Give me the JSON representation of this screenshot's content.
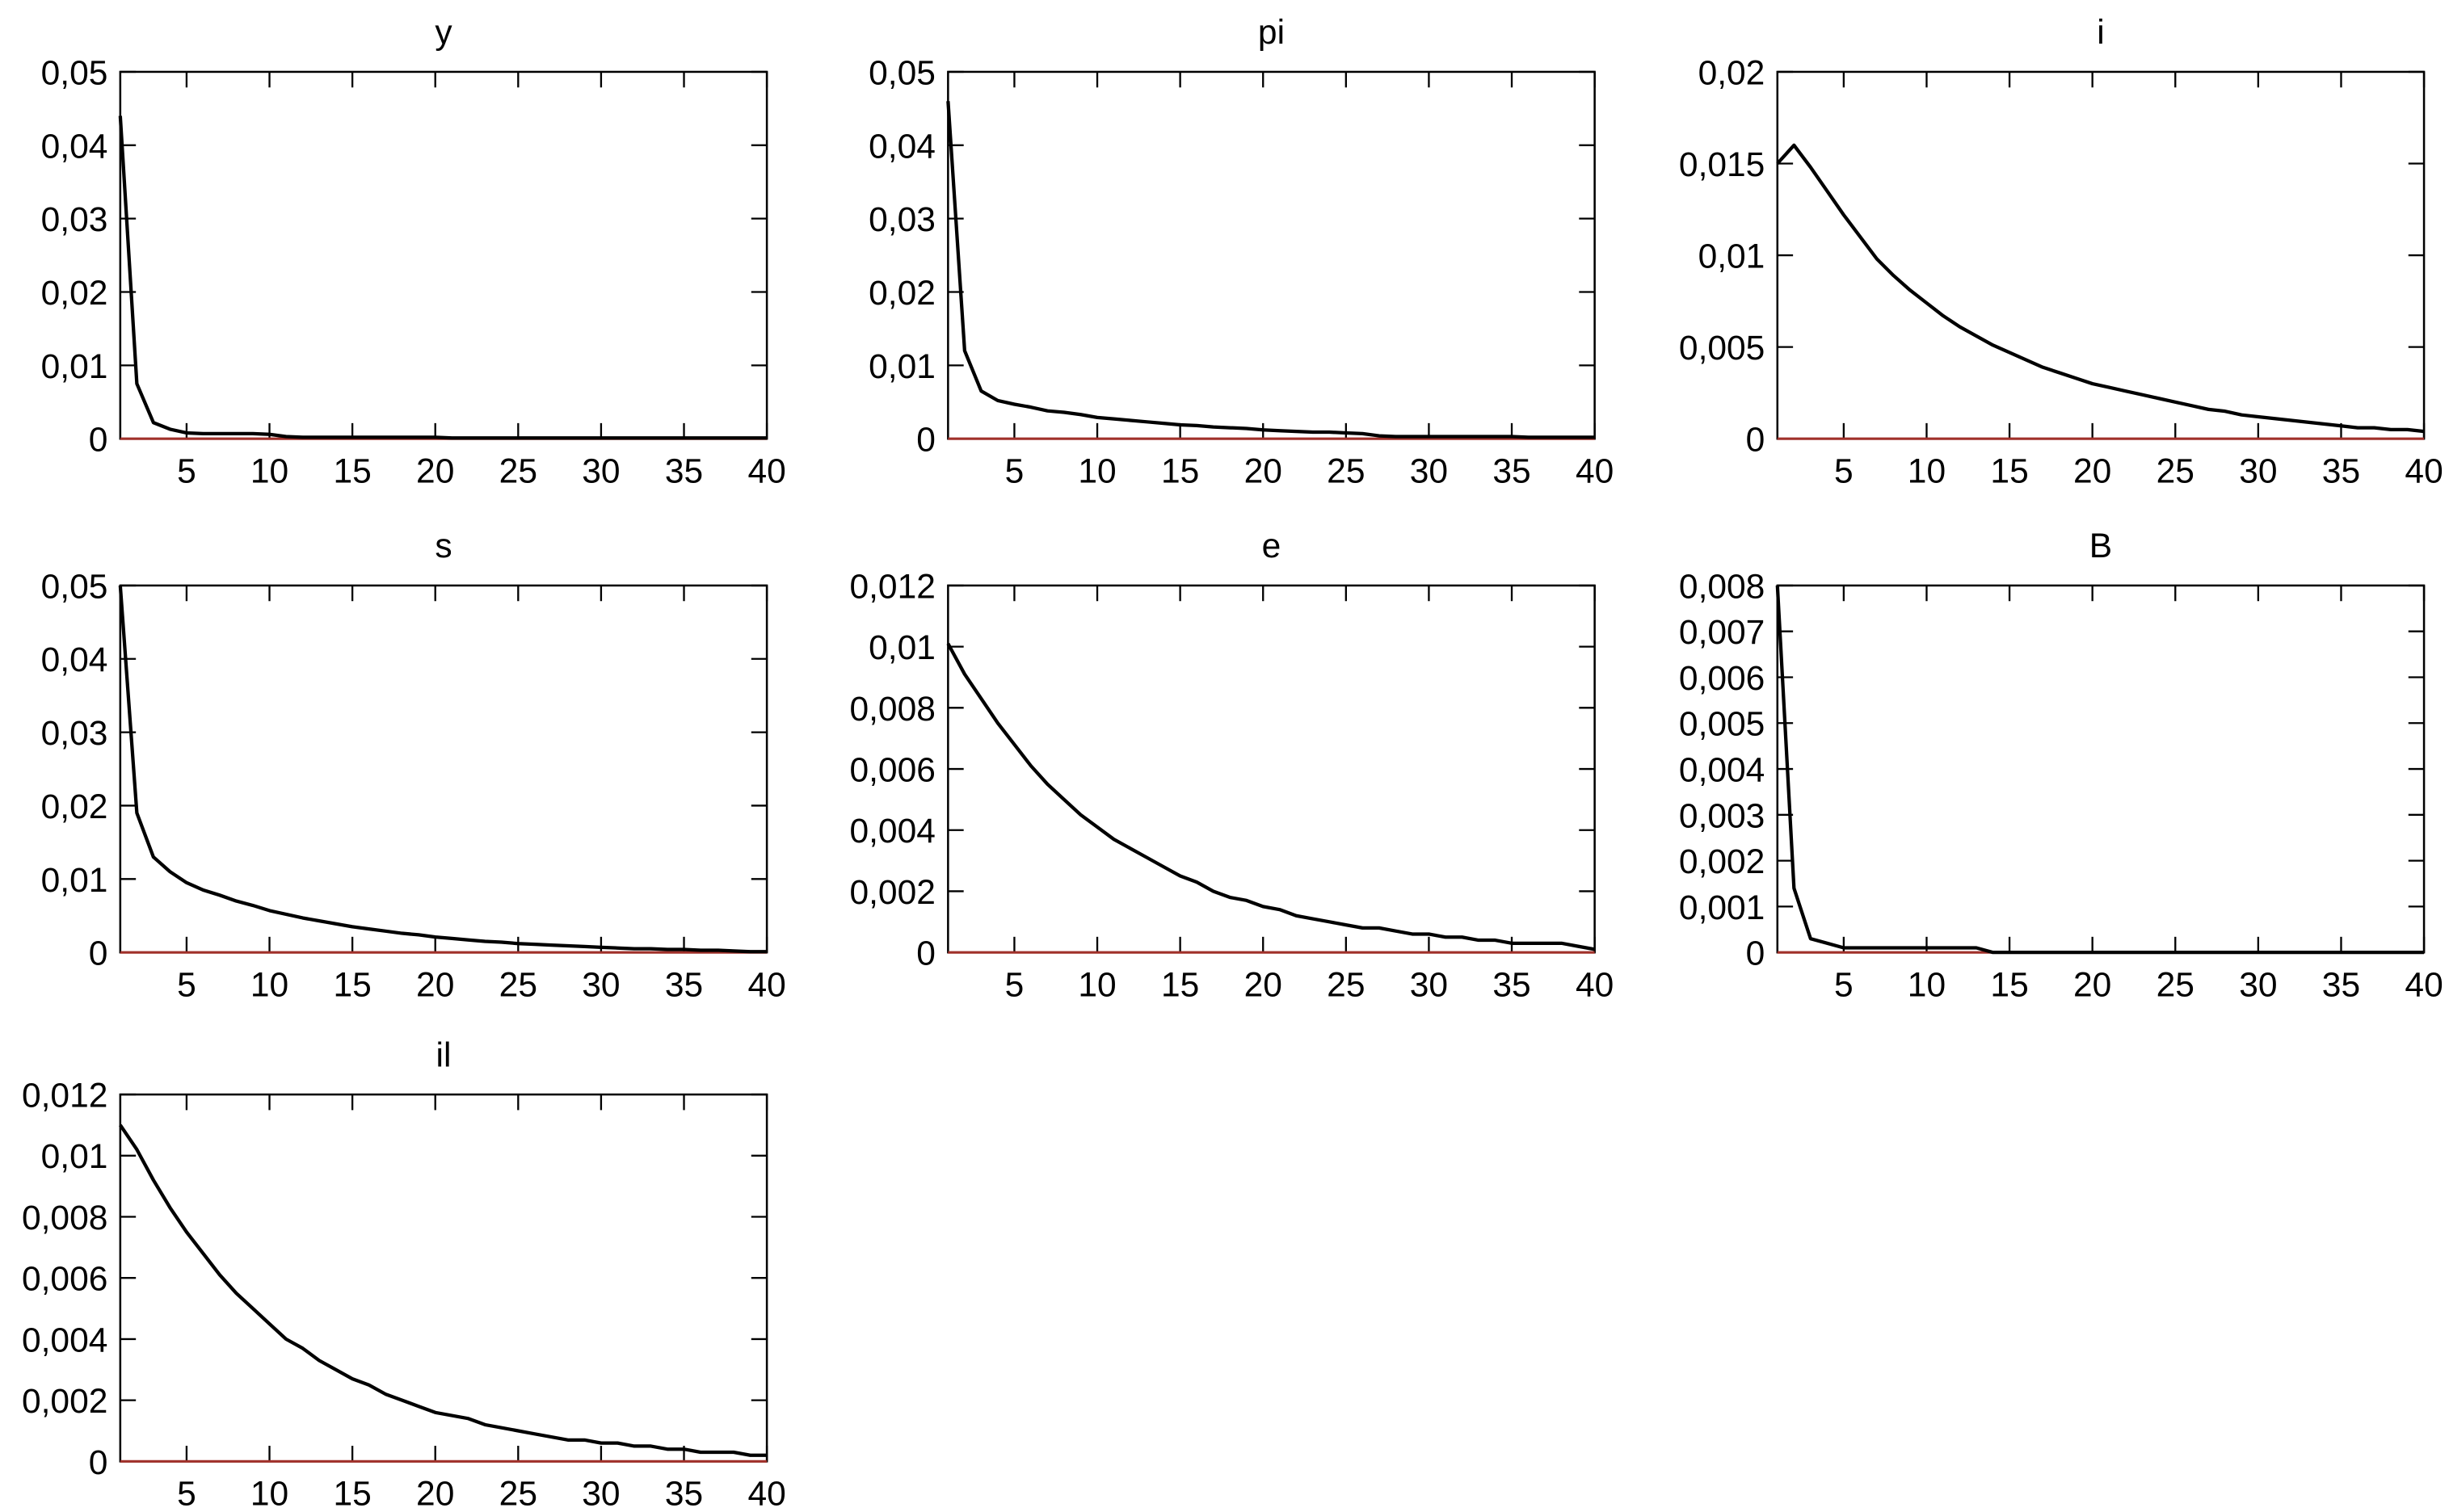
{
  "chart_data": [
    {
      "type": "line",
      "title": "y",
      "color": "#000000",
      "baseline_color": "#a0302a",
      "x": [
        1,
        2,
        3,
        4,
        5,
        6,
        7,
        8,
        9,
        10,
        11,
        12,
        13,
        14,
        15,
        16,
        17,
        18,
        19,
        20,
        21,
        22,
        23,
        24,
        25,
        26,
        27,
        28,
        29,
        30,
        31,
        32,
        33,
        34,
        35,
        36,
        37,
        38,
        39,
        40
      ],
      "values": [
        0.044,
        0.0075,
        0.0022,
        0.0013,
        0.0008,
        0.0007,
        0.0007,
        0.0007,
        0.0007,
        0.0006,
        0.0003,
        0.0002,
        0.0002,
        0.0002,
        0.0002,
        0.0002,
        0.0002,
        0.0002,
        0.0002,
        0.0002,
        0.0001,
        0.0001,
        0.0001,
        0.0001,
        0.0001,
        0.0001,
        0.0001,
        0.0001,
        0.0001,
        0.0001,
        0.0001,
        0.0001,
        0.0001,
        0.0001,
        0.0001,
        0.0001,
        0.0001,
        0.0001,
        0.0001,
        0.0001
      ],
      "xlim": [
        1,
        40
      ],
      "xticks": [
        5,
        10,
        15,
        20,
        25,
        30,
        35,
        40
      ],
      "ylim": [
        0,
        0.05
      ],
      "yticks": [
        0,
        {
          "value": 0.01,
          "label": "0,01"
        },
        {
          "value": 0.02,
          "label": "0,02"
        },
        {
          "value": 0.03,
          "label": "0,03"
        },
        {
          "value": 0.04,
          "label": "0,04"
        },
        {
          "value": 0.05,
          "label": "0,05"
        }
      ]
    },
    {
      "type": "line",
      "title": "pi",
      "color": "#000000",
      "baseline_color": "#a0302a",
      "x": [
        1,
        2,
        3,
        4,
        5,
        6,
        7,
        8,
        9,
        10,
        11,
        12,
        13,
        14,
        15,
        16,
        17,
        18,
        19,
        20,
        21,
        22,
        23,
        24,
        25,
        26,
        27,
        28,
        29,
        30,
        31,
        32,
        33,
        34,
        35,
        36,
        37,
        38,
        39,
        40
      ],
      "values": [
        0.046,
        0.012,
        0.0065,
        0.0052,
        0.0047,
        0.0043,
        0.0038,
        0.0036,
        0.0033,
        0.0029,
        0.0027,
        0.0025,
        0.0023,
        0.0021,
        0.0019,
        0.0018,
        0.0016,
        0.0015,
        0.0014,
        0.0012,
        0.0011,
        0.001,
        0.0009,
        0.0009,
        0.0008,
        0.0007,
        0.0004,
        0.0003,
        0.0003,
        0.0003,
        0.0003,
        0.0003,
        0.0003,
        0.0003,
        0.0003,
        0.0002,
        0.0002,
        0.0002,
        0.0002,
        0.0002
      ],
      "xlim": [
        1,
        40
      ],
      "xticks": [
        5,
        10,
        15,
        20,
        25,
        30,
        35,
        40
      ],
      "ylim": [
        0,
        0.05
      ],
      "yticks": [
        0,
        {
          "value": 0.01,
          "label": "0,01"
        },
        {
          "value": 0.02,
          "label": "0,02"
        },
        {
          "value": 0.03,
          "label": "0,03"
        },
        {
          "value": 0.04,
          "label": "0,04"
        },
        {
          "value": 0.05,
          "label": "0,05"
        }
      ]
    },
    {
      "type": "line",
      "title": "i",
      "color": "#000000",
      "baseline_color": "#a0302a",
      "x": [
        1,
        2,
        3,
        4,
        5,
        6,
        7,
        8,
        9,
        10,
        11,
        12,
        13,
        14,
        15,
        16,
        17,
        18,
        19,
        20,
        21,
        22,
        23,
        24,
        25,
        26,
        27,
        28,
        29,
        30,
        31,
        32,
        33,
        34,
        35,
        36,
        37,
        38,
        39,
        40
      ],
      "values": [
        0.015,
        0.016,
        0.0148,
        0.0135,
        0.0122,
        0.011,
        0.0098,
        0.0089,
        0.0081,
        0.0074,
        0.0067,
        0.0061,
        0.0056,
        0.0051,
        0.0047,
        0.0043,
        0.0039,
        0.0036,
        0.0033,
        0.003,
        0.0028,
        0.0026,
        0.0024,
        0.0022,
        0.002,
        0.0018,
        0.0016,
        0.0015,
        0.0013,
        0.0012,
        0.0011,
        0.001,
        0.0009,
        0.0008,
        0.0007,
        0.0006,
        0.0006,
        0.0005,
        0.0005,
        0.0004
      ],
      "xlim": [
        1,
        40
      ],
      "xticks": [
        5,
        10,
        15,
        20,
        25,
        30,
        35,
        40
      ],
      "ylim": [
        0,
        0.02
      ],
      "yticks": [
        0,
        {
          "value": 0.005,
          "label": "0,005"
        },
        {
          "value": 0.01,
          "label": "0,01"
        },
        {
          "value": 0.015,
          "label": "0,015"
        },
        {
          "value": 0.02,
          "label": "0,02"
        }
      ]
    },
    {
      "type": "line",
      "title": "s",
      "color": "#000000",
      "baseline_color": "#a0302a",
      "x": [
        1,
        2,
        3,
        4,
        5,
        6,
        7,
        8,
        9,
        10,
        11,
        12,
        13,
        14,
        15,
        16,
        17,
        18,
        19,
        20,
        21,
        22,
        23,
        24,
        25,
        26,
        27,
        28,
        29,
        30,
        31,
        32,
        33,
        34,
        35,
        36,
        37,
        38,
        39,
        40
      ],
      "values": [
        0.05,
        0.019,
        0.013,
        0.011,
        0.0095,
        0.0085,
        0.0078,
        0.007,
        0.0064,
        0.0057,
        0.0052,
        0.0047,
        0.0043,
        0.0039,
        0.0035,
        0.0032,
        0.0029,
        0.0026,
        0.0024,
        0.0021,
        0.0019,
        0.0017,
        0.0015,
        0.0014,
        0.0012,
        0.0011,
        0.001,
        0.0009,
        0.0008,
        0.0007,
        0.0006,
        0.0005,
        0.0005,
        0.0004,
        0.0004,
        0.0003,
        0.0003,
        0.0002,
        0.0001,
        0.0001
      ],
      "xlim": [
        1,
        40
      ],
      "xticks": [
        5,
        10,
        15,
        20,
        25,
        30,
        35,
        40
      ],
      "ylim": [
        0,
        0.05
      ],
      "yticks": [
        0,
        {
          "value": 0.01,
          "label": "0,01"
        },
        {
          "value": 0.02,
          "label": "0,02"
        },
        {
          "value": 0.03,
          "label": "0,03"
        },
        {
          "value": 0.04,
          "label": "0,04"
        },
        {
          "value": 0.05,
          "label": "0,05"
        }
      ]
    },
    {
      "type": "line",
      "title": "e",
      "color": "#000000",
      "baseline_color": "#a0302a",
      "x": [
        1,
        2,
        3,
        4,
        5,
        6,
        7,
        8,
        9,
        10,
        11,
        12,
        13,
        14,
        15,
        16,
        17,
        18,
        19,
        20,
        21,
        22,
        23,
        24,
        25,
        26,
        27,
        28,
        29,
        30,
        31,
        32,
        33,
        34,
        35,
        36,
        37,
        38,
        39,
        40
      ],
      "values": [
        0.0101,
        0.0091,
        0.0083,
        0.0075,
        0.0068,
        0.0061,
        0.0055,
        0.005,
        0.0045,
        0.0041,
        0.0037,
        0.0034,
        0.0031,
        0.0028,
        0.0025,
        0.0023,
        0.002,
        0.0018,
        0.0017,
        0.0015,
        0.0014,
        0.0012,
        0.0011,
        0.001,
        0.0009,
        0.0008,
        0.0008,
        0.0007,
        0.0006,
        0.0006,
        0.0005,
        0.0005,
        0.0004,
        0.0004,
        0.0003,
        0.0003,
        0.0003,
        0.0003,
        0.0002,
        0.0001
      ],
      "xlim": [
        1,
        40
      ],
      "xticks": [
        5,
        10,
        15,
        20,
        25,
        30,
        35,
        40
      ],
      "ylim": [
        0,
        0.012
      ],
      "yticks": [
        0,
        {
          "value": 0.002,
          "label": "0,002"
        },
        {
          "value": 0.004,
          "label": "0,004"
        },
        {
          "value": 0.006,
          "label": "0,006"
        },
        {
          "value": 0.008,
          "label": "0,008"
        },
        {
          "value": 0.01,
          "label": "0,01"
        },
        {
          "value": 0.012,
          "label": "0,012"
        }
      ]
    },
    {
      "type": "line",
      "title": "B",
      "color": "#000000",
      "baseline_color": "#a0302a",
      "x": [
        1,
        2,
        3,
        4,
        5,
        6,
        7,
        8,
        9,
        10,
        11,
        12,
        13,
        14,
        15,
        16,
        17,
        18,
        19,
        20,
        21,
        22,
        23,
        24,
        25,
        26,
        27,
        28,
        29,
        30,
        31,
        32,
        33,
        34,
        35,
        36,
        37,
        38,
        39,
        40
      ],
      "values": [
        0.008,
        0.0014,
        0.0003,
        0.0002,
        0.0001,
        0.0001,
        0.0001,
        0.0001,
        0.0001,
        0.0001,
        0.0001,
        0.0001,
        0.0001,
        0,
        0,
        0,
        0,
        0,
        0,
        0,
        0,
        0,
        0,
        0,
        0,
        0,
        0,
        0,
        0,
        0,
        0,
        0,
        0,
        0,
        0,
        0,
        0,
        0,
        0,
        0
      ],
      "xlim": [
        1,
        40
      ],
      "xticks": [
        5,
        10,
        15,
        20,
        25,
        30,
        35,
        40
      ],
      "ylim": [
        0,
        0.008
      ],
      "yticks": [
        0,
        {
          "value": 0.001,
          "label": "0,001"
        },
        {
          "value": 0.002,
          "label": "0,002"
        },
        {
          "value": 0.003,
          "label": "0,003"
        },
        {
          "value": 0.004,
          "label": "0,004"
        },
        {
          "value": 0.005,
          "label": "0,005"
        },
        {
          "value": 0.006,
          "label": "0,006"
        },
        {
          "value": 0.007,
          "label": "0,007"
        },
        {
          "value": 0.008,
          "label": "0,008"
        }
      ]
    },
    {
      "type": "line",
      "title": "il",
      "color": "#000000",
      "baseline_color": "#a0302a",
      "x": [
        1,
        2,
        3,
        4,
        5,
        6,
        7,
        8,
        9,
        10,
        11,
        12,
        13,
        14,
        15,
        16,
        17,
        18,
        19,
        20,
        21,
        22,
        23,
        24,
        25,
        26,
        27,
        28,
        29,
        30,
        31,
        32,
        33,
        34,
        35,
        36,
        37,
        38,
        39,
        40
      ],
      "values": [
        0.011,
        0.0102,
        0.0092,
        0.0083,
        0.0075,
        0.0068,
        0.0061,
        0.0055,
        0.005,
        0.0045,
        0.004,
        0.0037,
        0.0033,
        0.003,
        0.0027,
        0.0025,
        0.0022,
        0.002,
        0.0018,
        0.0016,
        0.0015,
        0.0014,
        0.0012,
        0.0011,
        0.001,
        0.0009,
        0.0008,
        0.0007,
        0.0007,
        0.0006,
        0.0006,
        0.0005,
        0.0005,
        0.0004,
        0.0004,
        0.0003,
        0.0003,
        0.0003,
        0.0002,
        0.0002
      ],
      "xlim": [
        1,
        40
      ],
      "xticks": [
        5,
        10,
        15,
        20,
        25,
        30,
        35,
        40
      ],
      "ylim": [
        0,
        0.012
      ],
      "yticks": [
        0,
        {
          "value": 0.002,
          "label": "0,002"
        },
        {
          "value": 0.004,
          "label": "0,004"
        },
        {
          "value": 0.006,
          "label": "0,006"
        },
        {
          "value": 0.008,
          "label": "0,008"
        },
        {
          "value": 0.01,
          "label": "0,01"
        },
        {
          "value": 0.012,
          "label": "0,012"
        }
      ]
    }
  ]
}
